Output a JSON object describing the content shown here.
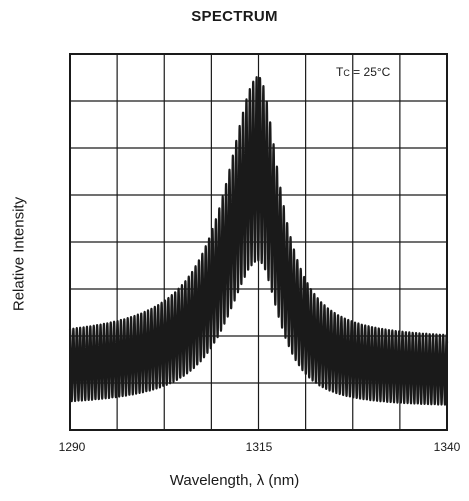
{
  "chart_data": {
    "type": "line",
    "title": "SPECTRUM",
    "xlabel": "Wavelength, λ (nm)",
    "ylabel": "Relative Intensity",
    "xlim": [
      1290,
      1340
    ],
    "xticks": [
      "1290",
      "1315",
      "1340"
    ],
    "grid": true,
    "annotation": {
      "main": "T",
      "sub": "C",
      "rest": " = 25°C"
    },
    "line_color": "#1a1a1a",
    "series": [
      {
        "values": {
          "x_start": 1290,
          "x_end": 1340,
          "mode_spacing_nm": 0.45,
          "envelope_peak_x": 1315,
          "baseline_min": 0.06,
          "baseline_max": 0.24,
          "peak_min": 0.45,
          "peak_max": 0.94
        }
      }
    ]
  }
}
